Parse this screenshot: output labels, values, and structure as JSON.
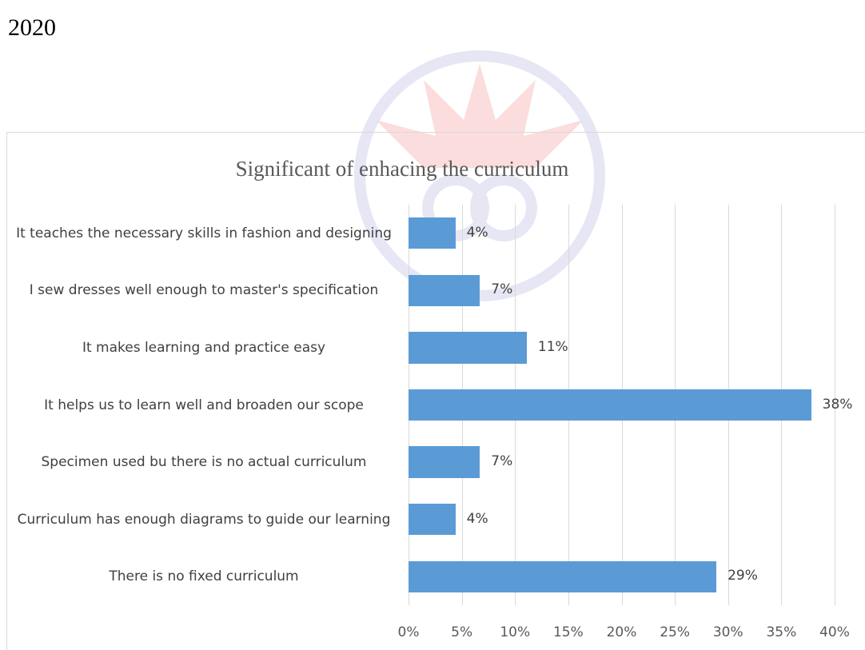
{
  "header": {
    "year": "2020"
  },
  "chart_data": {
    "type": "bar",
    "orientation": "horizontal",
    "title": "Significant of enhacing the curriculum",
    "categories": [
      "It teaches the necessary skills in fashion and designing",
      "I sew dresses well enough to master's specification",
      "It makes learning and practice easy",
      "It helps us to learn well and broaden our scope",
      "Specimen used bu there is no actual curriculum",
      "Curriculum has enough diagrams to guide our learning",
      "There is no fixed curriculum"
    ],
    "values": [
      4.4,
      6.7,
      11.1,
      37.8,
      6.7,
      4.4,
      28.9
    ],
    "value_labels": [
      "4%",
      "7%",
      "11%",
      "38%",
      "7%",
      "4%",
      "29%"
    ],
    "color": "#5b9bd5",
    "xlim": [
      0,
      40
    ],
    "xticks": [
      {
        "value": 0,
        "label": "0%"
      },
      {
        "value": 5,
        "label": "5%"
      },
      {
        "value": 10,
        "label": "10%"
      },
      {
        "value": 15,
        "label": "15%"
      },
      {
        "value": 20,
        "label": "20%"
      },
      {
        "value": 25,
        "label": "25%"
      },
      {
        "value": 30,
        "label": "30%"
      },
      {
        "value": 35,
        "label": "35%"
      },
      {
        "value": 40,
        "label": "40%"
      }
    ],
    "grid": true
  }
}
